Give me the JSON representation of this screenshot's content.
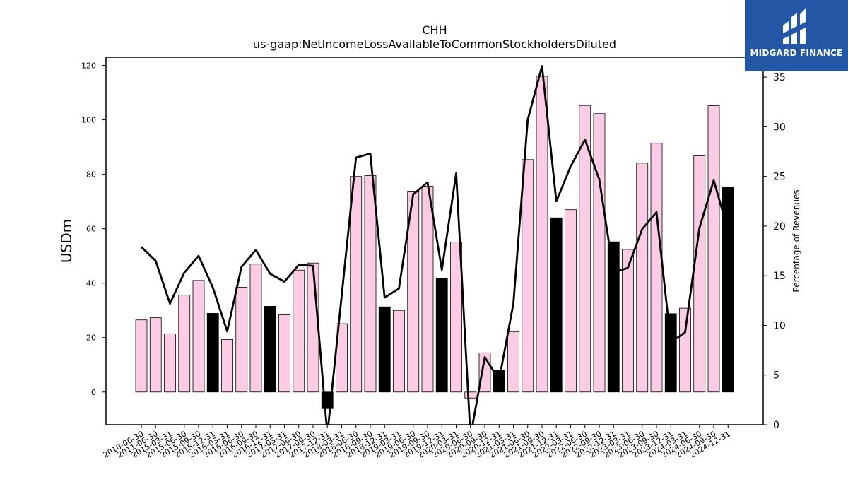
{
  "chart_data": {
    "type": "bar",
    "title": "CHH",
    "subtitle": "us-gaap:NetIncomeLossAvailableToCommonStockholdersDiluted",
    "ylabel": "USDm",
    "y2label": "Percentage of Revenues",
    "ylim": [
      -12,
      123
    ],
    "y2lim": [
      0,
      37
    ],
    "yticks": [
      0,
      20,
      40,
      60,
      80,
      100,
      120
    ],
    "y2ticks": [
      0,
      5,
      10,
      15,
      20,
      25,
      30,
      35
    ],
    "categories": [
      "2010-06-30",
      "2011-06-30",
      "2015-03-31",
      "2015-06-30",
      "2015-09-30",
      "2015-12-31",
      "2016-03-31",
      "2016-06-30",
      "2016-09-30",
      "2016-12-31",
      "2017-03-31",
      "2017-06-30",
      "2017-09-30",
      "2017-12-31",
      "2018-03-31",
      "2018-06-30",
      "2018-09-30",
      "2018-12-31",
      "2019-03-31",
      "2019-06-30",
      "2019-09-30",
      "2019-12-31",
      "2020-03-31",
      "2020-06-30",
      "2020-09-30",
      "2020-12-31",
      "2021-03-31",
      "2021-06-30",
      "2021-09-30",
      "2021-12-31",
      "2022-03-31",
      "2022-06-30",
      "2022-09-30",
      "2022-12-31",
      "2023-03-31",
      "2023-06-30",
      "2023-09-30",
      "2023-12-31",
      "2024-03-31",
      "2024-06-30",
      "2024-09-30",
      "2024-12-31"
    ],
    "series": [
      {
        "values": [
          26.5,
          27.3,
          21.4,
          35.6,
          41.0,
          28.9,
          19.3,
          38.5,
          47.0,
          31.5,
          28.4,
          44.8,
          47.4,
          -6.1,
          25.1,
          79.2,
          79.5,
          31.3,
          30.0,
          73.8,
          75.6,
          41.9,
          55.1,
          -2.2,
          14.4,
          8.0,
          22.2,
          85.4,
          116.0,
          64.0,
          67.0,
          105.3,
          102.3,
          55.2,
          52.4,
          84.1,
          91.4,
          28.8,
          30.8,
          86.8,
          105.2,
          75.3
        ],
        "highlight": [
          false,
          false,
          false,
          false,
          false,
          true,
          false,
          false,
          false,
          true,
          false,
          false,
          false,
          true,
          false,
          false,
          false,
          true,
          false,
          false,
          false,
          true,
          false,
          false,
          false,
          true,
          false,
          false,
          false,
          true,
          false,
          false,
          false,
          true,
          false,
          false,
          false,
          true,
          false,
          false,
          false,
          true
        ]
      },
      {
        "axis": "right",
        "type": "line",
        "values": [
          17.9,
          16.5,
          12.2,
          15.3,
          17.0,
          13.8,
          9.4,
          15.9,
          17.6,
          15.2,
          14.4,
          16.1,
          16.0,
          -1.0,
          13.0,
          26.9,
          27.3,
          12.8,
          13.7,
          23.2,
          24.4,
          15.6,
          25.3,
          -1.2,
          6.8,
          4.5,
          12.2,
          30.7,
          36.1,
          22.5,
          26.0,
          28.7,
          24.7,
          15.3,
          15.8,
          19.7,
          21.4,
          8.3,
          9.3,
          19.8,
          24.6,
          19.6
        ]
      }
    ],
    "colors": {
      "bar": "#fccce4",
      "bar_highlight": "#000000",
      "edge": "#000000",
      "line": "#000000"
    },
    "grid": false
  },
  "logo": {
    "text": "MIDGARD FINANCE",
    "color": "#2456a6"
  }
}
